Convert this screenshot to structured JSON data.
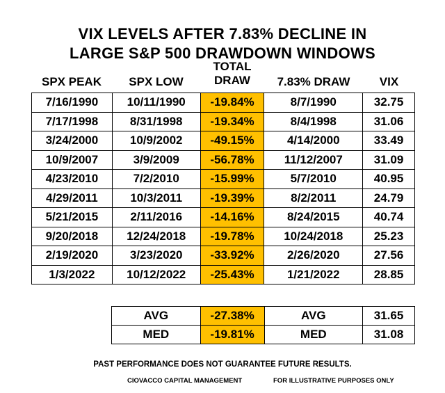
{
  "title": {
    "line1": "VIX LEVELS AFTER 7.83% DECLINE IN",
    "line2": "LARGE S&P 500 DRAWDOWN WINDOWS"
  },
  "headers": [
    "SPX PEAK",
    "SPX LOW",
    "TOTAL DRAW",
    "7.83% DRAW",
    "VIX"
  ],
  "highlight_color": "#ffc000",
  "rows": [
    [
      "7/16/1990",
      "10/11/1990",
      "-19.84%",
      "8/7/1990",
      "32.75"
    ],
    [
      "7/17/1998",
      "8/31/1998",
      "-19.34%",
      "8/4/1998",
      "31.06"
    ],
    [
      "3/24/2000",
      "10/9/2002",
      "-49.15%",
      "4/14/2000",
      "33.49"
    ],
    [
      "10/9/2007",
      "3/9/2009",
      "-56.78%",
      "11/12/2007",
      "31.09"
    ],
    [
      "4/23/2010",
      "7/2/2010",
      "-15.99%",
      "5/7/2010",
      "40.95"
    ],
    [
      "4/29/2011",
      "10/3/2011",
      "-19.39%",
      "8/2/2011",
      "24.79"
    ],
    [
      "5/21/2015",
      "2/11/2016",
      "-14.16%",
      "8/24/2015",
      "40.74"
    ],
    [
      "9/20/2018",
      "12/24/2018",
      "-19.78%",
      "10/24/2018",
      "25.23"
    ],
    [
      "2/19/2020",
      "3/23/2020",
      "-33.92%",
      "2/26/2020",
      "27.56"
    ],
    [
      "1/3/2022",
      "10/12/2022",
      "-25.43%",
      "1/21/2022",
      "28.85"
    ]
  ],
  "summary": [
    [
      "AVG",
      "-27.38%",
      "AVG",
      "31.65"
    ],
    [
      "MED",
      "-19.81%",
      "MED",
      "31.08"
    ]
  ],
  "footer": {
    "disclaimer": "PAST PERFORMANCE DOES NOT GUARANTEE FUTURE RESULTS.",
    "company": "CIOVACCO CAPITAL MANAGEMENT",
    "illustrative": "FOR ILLUSTRATIVE PURPOSES ONLY"
  }
}
